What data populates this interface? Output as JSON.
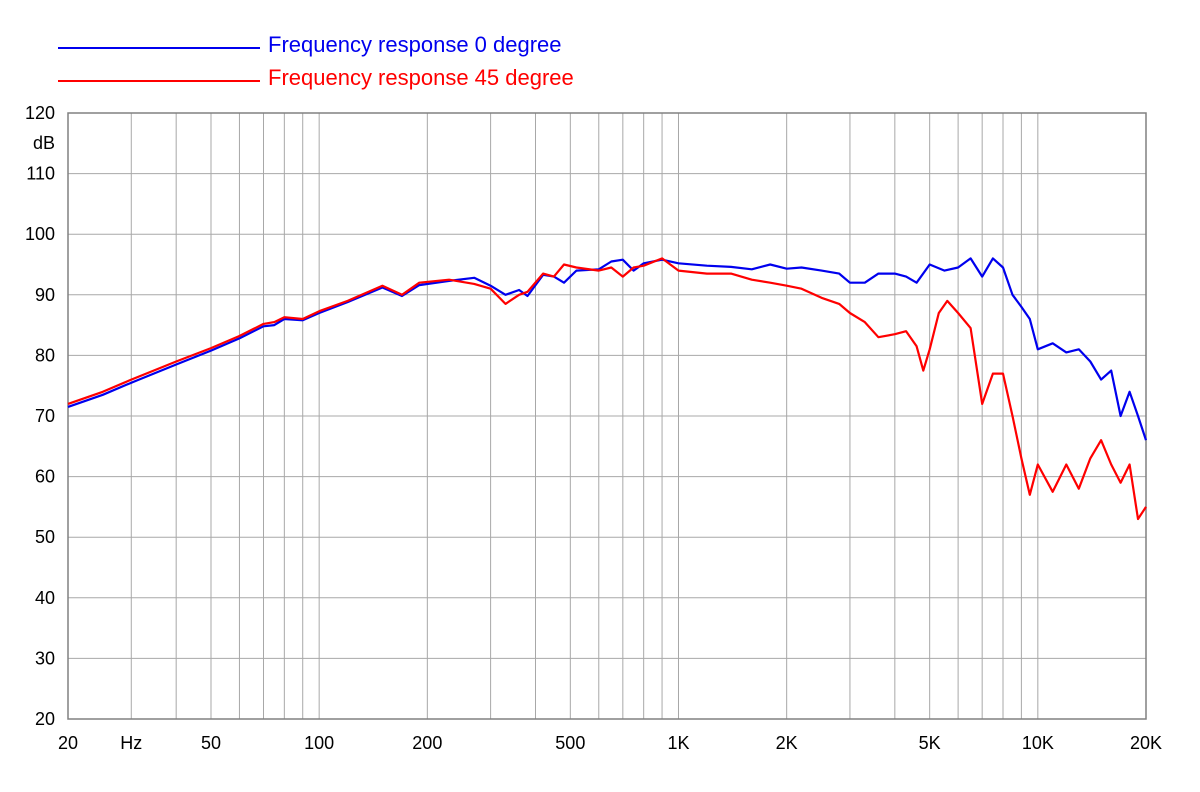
{
  "chart_data": {
    "type": "line",
    "title": "",
    "xlabel": "",
    "ylabel": "dB",
    "x_scale": "log",
    "xlim": [
      20,
      20000
    ],
    "ylim": [
      20,
      120
    ],
    "grid": true,
    "legend_position": "top-left",
    "x_tick_labels": [
      {
        "value": 20,
        "label": "20"
      },
      {
        "value": 30,
        "label": "Hz"
      },
      {
        "value": 50,
        "label": "50"
      },
      {
        "value": 100,
        "label": "100"
      },
      {
        "value": 200,
        "label": "200"
      },
      {
        "value": 500,
        "label": "500"
      },
      {
        "value": 1000,
        "label": "1K"
      },
      {
        "value": 2000,
        "label": "2K"
      },
      {
        "value": 5000,
        "label": "5K"
      },
      {
        "value": 10000,
        "label": "10K"
      },
      {
        "value": 20000,
        "label": "20K"
      }
    ],
    "y_ticks": [
      20,
      30,
      40,
      50,
      60,
      70,
      80,
      90,
      100,
      110,
      120
    ],
    "series": [
      {
        "name": "Frequency response 0 degree",
        "color": "#0000ee",
        "points": [
          [
            20,
            71.5
          ],
          [
            25,
            73.5
          ],
          [
            30,
            75.5
          ],
          [
            40,
            78.5
          ],
          [
            50,
            80.8
          ],
          [
            60,
            82.8
          ],
          [
            70,
            84.8
          ],
          [
            75,
            85.0
          ],
          [
            80,
            86.0
          ],
          [
            90,
            85.8
          ],
          [
            100,
            87.0
          ],
          [
            120,
            88.8
          ],
          [
            150,
            91.2
          ],
          [
            170,
            89.8
          ],
          [
            190,
            91.6
          ],
          [
            230,
            92.3
          ],
          [
            270,
            92.8
          ],
          [
            300,
            91.5
          ],
          [
            330,
            90.0
          ],
          [
            360,
            90.8
          ],
          [
            380,
            89.8
          ],
          [
            420,
            93.3
          ],
          [
            450,
            93.0
          ],
          [
            480,
            92.0
          ],
          [
            520,
            94.0
          ],
          [
            600,
            94.2
          ],
          [
            650,
            95.5
          ],
          [
            700,
            95.8
          ],
          [
            750,
            94.0
          ],
          [
            800,
            95.2
          ],
          [
            900,
            95.8
          ],
          [
            1000,
            95.2
          ],
          [
            1200,
            94.8
          ],
          [
            1400,
            94.6
          ],
          [
            1600,
            94.2
          ],
          [
            1800,
            95.0
          ],
          [
            2000,
            94.3
          ],
          [
            2200,
            94.5
          ],
          [
            2500,
            94.0
          ],
          [
            2800,
            93.5
          ],
          [
            3000,
            92.0
          ],
          [
            3300,
            92.0
          ],
          [
            3600,
            93.5
          ],
          [
            4000,
            93.5
          ],
          [
            4300,
            93.0
          ],
          [
            4600,
            92.0
          ],
          [
            5000,
            95.0
          ],
          [
            5500,
            94.0
          ],
          [
            6000,
            94.5
          ],
          [
            6500,
            96.0
          ],
          [
            7000,
            93.0
          ],
          [
            7500,
            96.0
          ],
          [
            8000,
            94.5
          ],
          [
            8500,
            90.0
          ],
          [
            9000,
            88.0
          ],
          [
            9500,
            86.0
          ],
          [
            10000,
            81.0
          ],
          [
            11000,
            82.0
          ],
          [
            12000,
            80.5
          ],
          [
            13000,
            81.0
          ],
          [
            14000,
            79.0
          ],
          [
            15000,
            76.0
          ],
          [
            16000,
            77.5
          ],
          [
            17000,
            70.0
          ],
          [
            18000,
            74.0
          ],
          [
            19000,
            70.0
          ],
          [
            20000,
            66.0
          ]
        ]
      },
      {
        "name": "Frequency response 45 degree",
        "color": "#ff0000",
        "points": [
          [
            20,
            72.0
          ],
          [
            25,
            74.0
          ],
          [
            30,
            76.0
          ],
          [
            40,
            79.0
          ],
          [
            50,
            81.2
          ],
          [
            60,
            83.2
          ],
          [
            70,
            85.2
          ],
          [
            75,
            85.5
          ],
          [
            80,
            86.3
          ],
          [
            90,
            86.0
          ],
          [
            100,
            87.3
          ],
          [
            120,
            89.0
          ],
          [
            150,
            91.5
          ],
          [
            170,
            90.0
          ],
          [
            190,
            92.0
          ],
          [
            230,
            92.5
          ],
          [
            270,
            91.8
          ],
          [
            300,
            91.0
          ],
          [
            330,
            88.5
          ],
          [
            360,
            90.0
          ],
          [
            380,
            90.5
          ],
          [
            420,
            93.5
          ],
          [
            450,
            93.0
          ],
          [
            480,
            95.0
          ],
          [
            520,
            94.5
          ],
          [
            600,
            94.0
          ],
          [
            650,
            94.5
          ],
          [
            700,
            93.0
          ],
          [
            750,
            94.5
          ],
          [
            800,
            94.8
          ],
          [
            900,
            96.0
          ],
          [
            1000,
            94.0
          ],
          [
            1200,
            93.5
          ],
          [
            1400,
            93.5
          ],
          [
            1600,
            92.5
          ],
          [
            1800,
            92.0
          ],
          [
            2000,
            91.5
          ],
          [
            2200,
            91.0
          ],
          [
            2500,
            89.5
          ],
          [
            2800,
            88.5
          ],
          [
            3000,
            87.0
          ],
          [
            3300,
            85.5
          ],
          [
            3600,
            83.0
          ],
          [
            4000,
            83.5
          ],
          [
            4300,
            84.0
          ],
          [
            4600,
            81.5
          ],
          [
            4800,
            77.5
          ],
          [
            5000,
            81.0
          ],
          [
            5300,
            87.0
          ],
          [
            5600,
            89.0
          ],
          [
            6000,
            87.0
          ],
          [
            6500,
            84.5
          ],
          [
            7000,
            72.0
          ],
          [
            7500,
            77.0
          ],
          [
            8000,
            77.0
          ],
          [
            8500,
            70.0
          ],
          [
            9000,
            63.0
          ],
          [
            9500,
            57.0
          ],
          [
            10000,
            62.0
          ],
          [
            11000,
            57.5
          ],
          [
            12000,
            62.0
          ],
          [
            13000,
            58.0
          ],
          [
            14000,
            63.0
          ],
          [
            15000,
            66.0
          ],
          [
            16000,
            62.0
          ],
          [
            17000,
            59.0
          ],
          [
            18000,
            62.0
          ],
          [
            19000,
            53.0
          ],
          [
            20000,
            55.0
          ]
        ]
      }
    ]
  }
}
